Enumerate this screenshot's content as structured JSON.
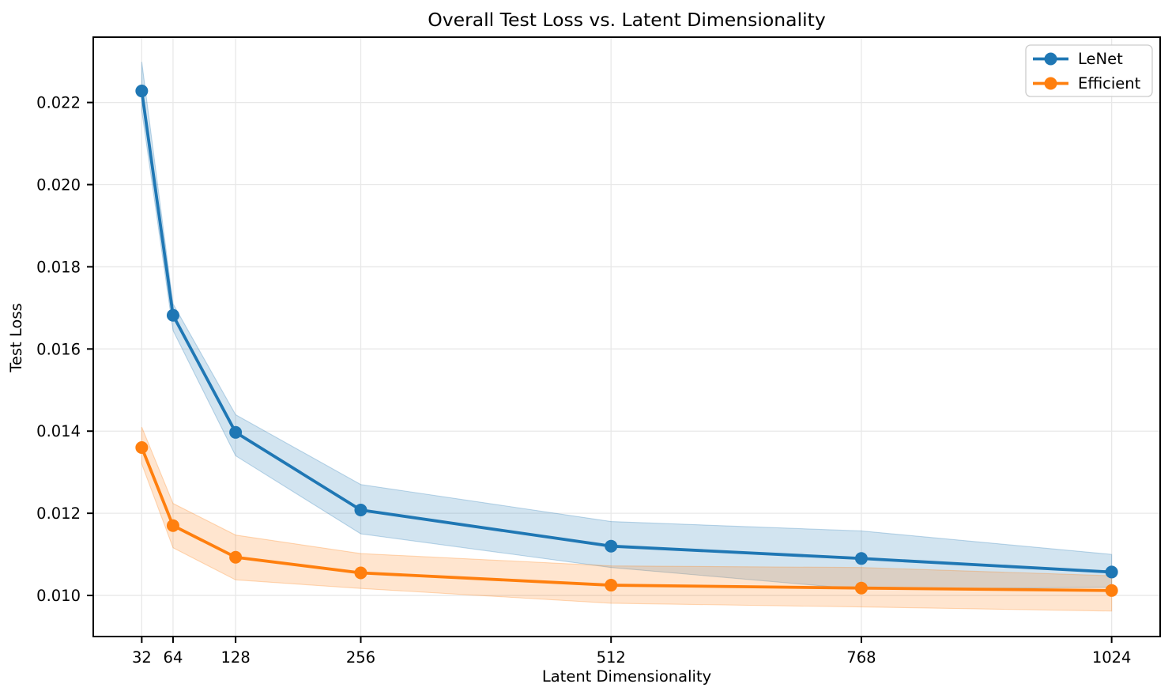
{
  "chart_data": {
    "type": "line",
    "title": "Overall Test Loss vs. Latent Dimensionality",
    "xlabel": "Latent Dimensionality",
    "ylabel": "Test Loss",
    "x": [
      32,
      64,
      128,
      256,
      512,
      768,
      1024
    ],
    "x_tick_labels": [
      "32",
      "64",
      "128",
      "256",
      "512",
      "768",
      "1024"
    ],
    "y_ticks": [
      0.01,
      0.012,
      0.014,
      0.016,
      0.018,
      0.02,
      0.022
    ],
    "xlim": [
      -17.6,
      1073.6
    ],
    "ylim": [
      0.009,
      0.02359
    ],
    "grid": true,
    "legend_position": "upper right",
    "series": [
      {
        "name": "LeNet",
        "color": "#1f77b4",
        "values": [
          0.02228,
          0.01682,
          0.01397,
          0.01208,
          0.0112,
          0.0109,
          0.01057
        ],
        "band_upper": [
          0.02299,
          0.0171,
          0.0144,
          0.0127,
          0.0118,
          0.01157,
          0.011
        ],
        "band_lower": [
          0.0218,
          0.01645,
          0.0134,
          0.0115,
          0.01068,
          0.01015,
          0.0102
        ],
        "band_alpha": 0.2
      },
      {
        "name": "Efficient",
        "color": "#ff7f0e",
        "values": [
          0.0136,
          0.0117,
          0.01093,
          0.01055,
          0.01025,
          0.01018,
          0.01012
        ],
        "band_upper": [
          0.0141,
          0.01224,
          0.01147,
          0.01102,
          0.01072,
          0.01068,
          0.01048
        ],
        "band_lower": [
          0.0132,
          0.01116,
          0.01038,
          0.01017,
          0.00981,
          0.00972,
          0.00962
        ],
        "band_alpha": 0.2
      }
    ],
    "style": {
      "grid_color": "#e8e8e8",
      "axis_color": "#000000",
      "background": "#ffffff"
    }
  },
  "legend": {
    "items": [
      {
        "label": "LeNet",
        "color": "#1f77b4"
      },
      {
        "label": "Efficient",
        "color": "#ff7f0e"
      }
    ]
  }
}
